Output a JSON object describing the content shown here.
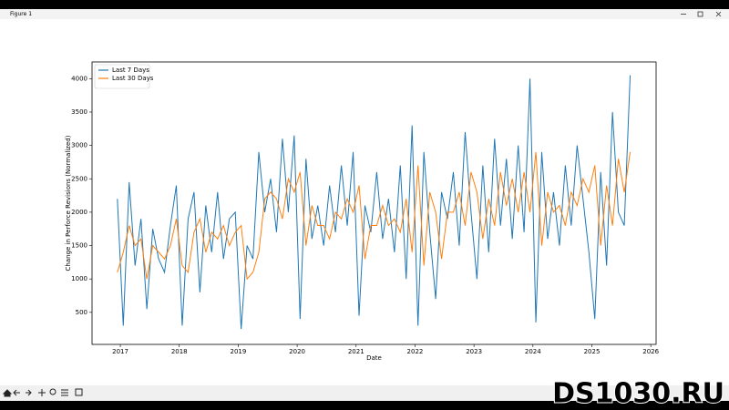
{
  "window_title": "Figure 1",
  "watermark": "DS1030.RU",
  "chart_data": {
    "type": "line",
    "xlabel": "Date",
    "ylabel": "Change in Perforce Revisions (Normalized)",
    "x": [
      2016.95,
      2017.05,
      2017.15,
      2017.25,
      2017.35,
      2017.45,
      2017.55,
      2017.65,
      2017.75,
      2017.85,
      2017.95,
      2018.05,
      2018.15,
      2018.25,
      2018.35,
      2018.45,
      2018.55,
      2018.65,
      2018.75,
      2018.85,
      2018.95,
      2019.05,
      2019.15,
      2019.25,
      2019.35,
      2019.45,
      2019.55,
      2019.65,
      2019.75,
      2019.85,
      2019.95,
      2020.05,
      2020.15,
      2020.25,
      2020.35,
      2020.45,
      2020.55,
      2020.65,
      2020.75,
      2020.85,
      2020.95,
      2021.05,
      2021.15,
      2021.25,
      2021.35,
      2021.45,
      2021.55,
      2021.65,
      2021.75,
      2021.85,
      2021.95,
      2022.05,
      2022.15,
      2022.25,
      2022.35,
      2022.45,
      2022.55,
      2022.65,
      2022.75,
      2022.85,
      2022.95,
      2023.05,
      2023.15,
      2023.25,
      2023.35,
      2023.45,
      2023.55,
      2023.65,
      2023.75,
      2023.85,
      2023.95,
      2024.05,
      2024.15,
      2024.25,
      2024.35,
      2024.45,
      2024.55,
      2024.65,
      2024.75,
      2024.85,
      2024.95,
      2025.05,
      2025.15,
      2025.25,
      2025.35,
      2025.45,
      2025.55,
      2025.65
    ],
    "series": [
      {
        "name": "Last 7 Days",
        "color": "#1f77b4",
        "values": [
          2200,
          300,
          2450,
          1200,
          1900,
          550,
          1750,
          1300,
          1100,
          1800,
          2400,
          300,
          1900,
          2300,
          800,
          2100,
          1400,
          2300,
          1300,
          1900,
          2000,
          250,
          1500,
          1300,
          2900,
          2000,
          2500,
          1700,
          3100,
          2000,
          3150,
          400,
          2800,
          1600,
          2100,
          1500,
          2400,
          1700,
          2700,
          1800,
          2900,
          450,
          2100,
          1700,
          2600,
          1600,
          2200,
          1400,
          2700,
          1000,
          3300,
          300,
          2900,
          1700,
          700,
          2300,
          1900,
          2600,
          1500,
          3200,
          2000,
          1000,
          2700,
          1400,
          3100,
          1800,
          2800,
          1600,
          3000,
          1700,
          4000,
          350,
          2900,
          1600,
          2300,
          1500,
          2700,
          1800,
          3000,
          2200,
          1400,
          400,
          2600,
          1200,
          3500,
          2000,
          1800,
          4050
        ]
      },
      {
        "name": "Last 30 Days",
        "color": "#ff7f0e",
        "values": [
          1100,
          1400,
          1800,
          1500,
          1600,
          1000,
          1500,
          1400,
          1300,
          1500,
          1900,
          1200,
          1100,
          1700,
          1900,
          1400,
          1700,
          1600,
          1800,
          1500,
          1700,
          1800,
          1000,
          1100,
          1400,
          2200,
          2300,
          2200,
          1900,
          2500,
          2300,
          2600,
          1500,
          2100,
          1800,
          1800,
          1600,
          2000,
          1900,
          2200,
          2000,
          2400,
          1300,
          1800,
          1800,
          2100,
          1800,
          1900,
          1700,
          2200,
          1400,
          2700,
          1200,
          2300,
          2000,
          1300,
          2000,
          2000,
          2300,
          1800,
          2600,
          2300,
          1600,
          2200,
          1800,
          2600,
          2100,
          2500,
          2000,
          2600,
          2000,
          2900,
          1500,
          2300,
          2000,
          2100,
          1800,
          2300,
          2100,
          2500,
          2300,
          2700,
          1500,
          2400,
          1800,
          2800,
          2300,
          2900
        ]
      }
    ],
    "xlim": [
      2016.52,
      2026.09
    ],
    "xticks": [
      2017,
      2018,
      2019,
      2020,
      2021,
      2022,
      2023,
      2024,
      2025,
      2026
    ],
    "ylim": [
      20,
      4250
    ],
    "yticks": [
      500,
      1000,
      1500,
      2000,
      2500,
      3000,
      3500,
      4000
    ],
    "legend": "upper left"
  }
}
